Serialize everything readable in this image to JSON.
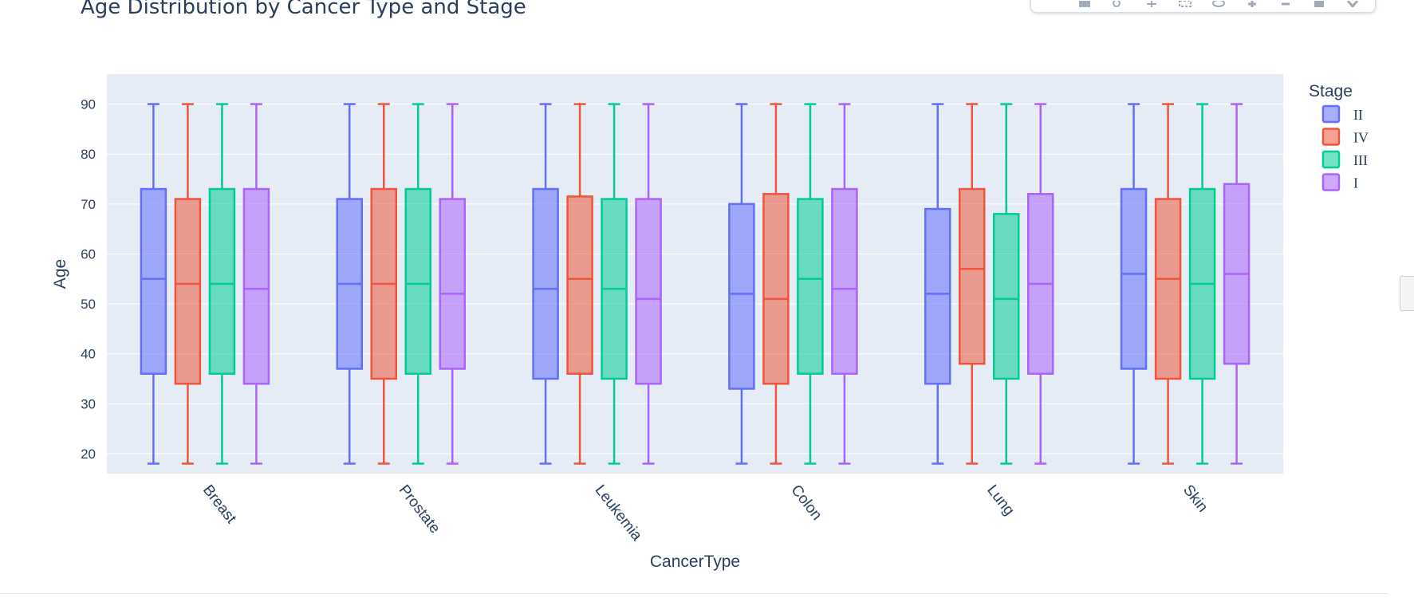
{
  "chart_data": {
    "type": "box",
    "title": "Age Distribution by Cancer Type and Stage",
    "xlabel": "CancerType",
    "ylabel": "Age",
    "ylim": [
      16,
      96
    ],
    "yticks": [
      20,
      30,
      40,
      50,
      60,
      70,
      80,
      90
    ],
    "grid": true,
    "legend_position": "right",
    "legend_title": "Stage",
    "categories": [
      "Breast",
      "Prostate",
      "Leukemia",
      "Colon",
      "Lung",
      "Skin"
    ],
    "series": [
      {
        "name": "II",
        "color": "#636efa",
        "boxes": [
          {
            "min": 18,
            "q1": 36,
            "median": 55,
            "q3": 73,
            "max": 90
          },
          {
            "min": 18,
            "q1": 37,
            "median": 54,
            "q3": 71,
            "max": 90
          },
          {
            "min": 18,
            "q1": 35,
            "median": 53,
            "q3": 73,
            "max": 90
          },
          {
            "min": 18,
            "q1": 33,
            "median": 52,
            "q3": 70,
            "max": 90
          },
          {
            "min": 18,
            "q1": 34,
            "median": 52,
            "q3": 69,
            "max": 90
          },
          {
            "min": 18,
            "q1": 37,
            "median": 56,
            "q3": 73,
            "max": 90
          }
        ]
      },
      {
        "name": "IV",
        "color": "#ef553b",
        "boxes": [
          {
            "min": 18,
            "q1": 34,
            "median": 54,
            "q3": 71,
            "max": 90
          },
          {
            "min": 18,
            "q1": 35,
            "median": 54,
            "q3": 73,
            "max": 90
          },
          {
            "min": 18,
            "q1": 36,
            "median": 55,
            "q3": 71.5,
            "max": 90
          },
          {
            "min": 18,
            "q1": 34,
            "median": 51,
            "q3": 72,
            "max": 90
          },
          {
            "min": 18,
            "q1": 38,
            "median": 57,
            "q3": 73,
            "max": 90
          },
          {
            "min": 18,
            "q1": 35,
            "median": 55,
            "q3": 71,
            "max": 90
          }
        ]
      },
      {
        "name": "III",
        "color": "#00cc96",
        "boxes": [
          {
            "min": 18,
            "q1": 36,
            "median": 54,
            "q3": 73,
            "max": 90
          },
          {
            "min": 18,
            "q1": 36,
            "median": 54,
            "q3": 73,
            "max": 90
          },
          {
            "min": 18,
            "q1": 35,
            "median": 53,
            "q3": 71,
            "max": 90
          },
          {
            "min": 18,
            "q1": 36,
            "median": 55,
            "q3": 71,
            "max": 90
          },
          {
            "min": 18,
            "q1": 35,
            "median": 51,
            "q3": 68,
            "max": 90
          },
          {
            "min": 18,
            "q1": 35,
            "median": 54,
            "q3": 73,
            "max": 90
          }
        ]
      },
      {
        "name": "I",
        "color": "#ab63fa",
        "boxes": [
          {
            "min": 18,
            "q1": 34,
            "median": 53,
            "q3": 73,
            "max": 90
          },
          {
            "min": 18,
            "q1": 37,
            "median": 52,
            "q3": 71,
            "max": 90
          },
          {
            "min": 18,
            "q1": 34,
            "median": 51,
            "q3": 71,
            "max": 90
          },
          {
            "min": 18,
            "q1": 36,
            "median": 53,
            "q3": 73,
            "max": 90
          },
          {
            "min": 18,
            "q1": 36,
            "median": 54,
            "q3": 72,
            "max": 90
          },
          {
            "min": 18,
            "q1": 38,
            "median": 56,
            "q3": 74,
            "max": 90
          }
        ]
      }
    ]
  },
  "modebar": {
    "icons": [
      "camera-icon",
      "zoom-icon",
      "pan-icon",
      "box-select-icon",
      "lasso-icon",
      "zoom-in-icon",
      "zoom-out-icon",
      "autoscale-icon",
      "reset-axes-icon"
    ]
  }
}
